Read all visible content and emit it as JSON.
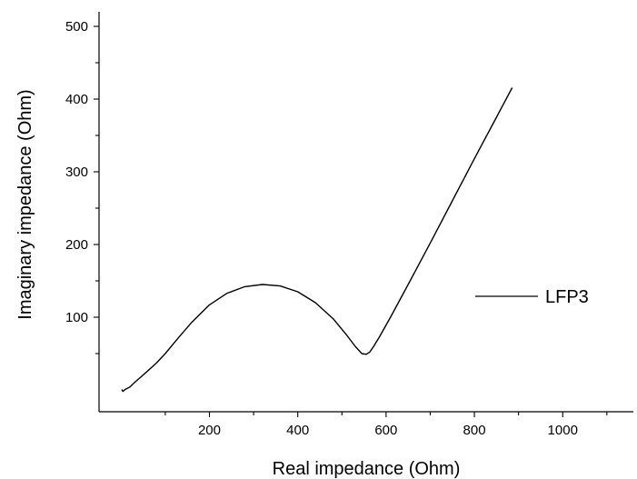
{
  "chart_data": {
    "type": "line",
    "title": "",
    "xlabel": "Real impedance (Ohm)",
    "ylabel": "Imaginary impedance (Ohm)",
    "xlim": [
      -50,
      1160
    ],
    "ylim": [
      -30,
      520
    ],
    "x_ticks": [
      200,
      400,
      600,
      800,
      1000
    ],
    "y_ticks": [
      100,
      200,
      300,
      400,
      500
    ],
    "grid": false,
    "legend": {
      "position": "right",
      "entries": [
        "LFP3"
      ]
    },
    "series": [
      {
        "name": "LFP3",
        "color": "#000000",
        "x": [
          2,
          4,
          10,
          20,
          30,
          45,
          60,
          80,
          100,
          130,
          160,
          200,
          240,
          280,
          320,
          360,
          400,
          440,
          480,
          510,
          530,
          545,
          555,
          563,
          572,
          585,
          610,
          650,
          700,
          750,
          800,
          850,
          885
        ],
        "y": [
          0,
          -2,
          1,
          4,
          10,
          18,
          26,
          37,
          50,
          72,
          93,
          117,
          133,
          142,
          145,
          143,
          135,
          120,
          98,
          76,
          60,
          50,
          49,
          52,
          60,
          73,
          100,
          145,
          202,
          260,
          318,
          375,
          415
        ]
      }
    ]
  }
}
